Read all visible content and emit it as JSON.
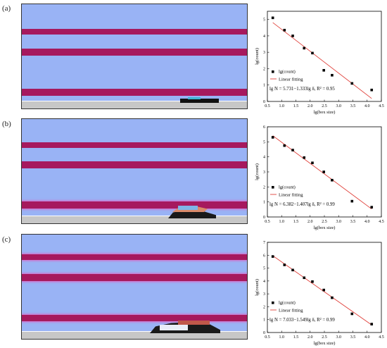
{
  "panels": [
    {
      "label": "(a)"
    },
    {
      "label": "(b)"
    },
    {
      "label": "(c)"
    }
  ],
  "chart_data": [
    {
      "type": "scatter",
      "title": "",
      "xlabel": "lg(box size)",
      "ylabel": "lg(count)",
      "xlim": [
        0.5,
        4.5
      ],
      "ylim": [
        0,
        5.5
      ],
      "xticks": [
        "0.5",
        "1.0",
        "1.5",
        "2.0",
        "2.5",
        "3.0",
        "3.5",
        "4.0",
        "4.5"
      ],
      "yticks": [
        "0",
        "1",
        "2",
        "3",
        "4",
        "5"
      ],
      "legend": [
        "lg(count)",
        "Linear fitting"
      ],
      "legend_position": "bottom-left",
      "equation": "lg N = 5.731−1.333lg δ, R² = 0.95",
      "series": [
        {
          "name": "lg(count)",
          "x": [
            0.69,
            1.1,
            1.39,
            1.79,
            2.08,
            2.48,
            2.77,
            3.47,
            4.16
          ],
          "y": [
            5.1,
            4.35,
            4.0,
            3.25,
            2.95,
            1.9,
            1.6,
            1.1,
            0.7
          ]
        },
        {
          "name": "Linear fitting",
          "x": [
            0.69,
            4.16
          ],
          "y": [
            4.81,
            0.18
          ]
        }
      ]
    },
    {
      "type": "scatter",
      "title": "",
      "xlabel": "lg(box size)",
      "ylabel": "lg(count)",
      "xlim": [
        0.5,
        4.5
      ],
      "ylim": [
        0,
        6
      ],
      "xticks": [
        "0.5",
        "1.0",
        "1.5",
        "2.0",
        "2.5",
        "3.0",
        "3.5",
        "4.0",
        "4.5"
      ],
      "yticks": [
        "0",
        "1",
        "2",
        "3",
        "4",
        "5",
        "6"
      ],
      "legend": [
        "lg(count)",
        "Linear fitting"
      ],
      "legend_position": "bottom-left",
      "equation": "lg N = 6.382−1.407lg δ, R² = 0.99",
      "series": [
        {
          "name": "lg(count)",
          "x": [
            0.69,
            1.1,
            1.39,
            1.79,
            2.08,
            2.48,
            2.77,
            3.47,
            4.16
          ],
          "y": [
            5.3,
            4.75,
            4.45,
            3.95,
            3.6,
            3.0,
            2.45,
            1.05,
            0.65
          ]
        },
        {
          "name": "Linear fitting",
          "x": [
            0.69,
            4.16
          ],
          "y": [
            5.41,
            0.53
          ]
        }
      ]
    },
    {
      "type": "scatter",
      "title": "",
      "xlabel": "lg(box size)",
      "ylabel": "lg(count)",
      "xlim": [
        0.5,
        4.5
      ],
      "ylim": [
        0,
        7
      ],
      "xticks": [
        "0.5",
        "1.0",
        "1.5",
        "2.0",
        "2.5",
        "3.0",
        "3.5",
        "4.0",
        "4.5"
      ],
      "yticks": [
        "0",
        "1",
        "2",
        "3",
        "4",
        "5",
        "6",
        "7"
      ],
      "legend": [
        "lg(count)",
        "Linear fitting"
      ],
      "legend_position": "bottom-left",
      "equation": "lg N = 7.033−1.549lg δ, R² = 0.99",
      "series": [
        {
          "name": "lg(count)",
          "x": [
            0.69,
            1.1,
            1.39,
            1.79,
            2.08,
            2.48,
            2.77,
            3.47,
            4.16
          ],
          "y": [
            5.9,
            5.25,
            4.85,
            4.25,
            3.95,
            3.3,
            2.7,
            1.45,
            0.65
          ]
        },
        {
          "name": "Linear fitting",
          "x": [
            0.69,
            4.16
          ],
          "y": [
            5.96,
            0.59
          ]
        }
      ]
    }
  ]
}
